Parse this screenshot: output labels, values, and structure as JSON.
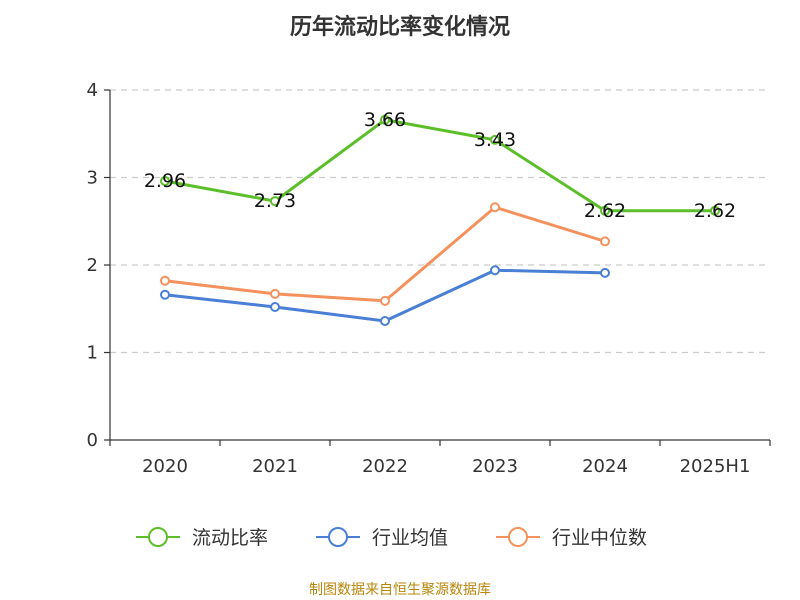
{
  "chart_data": {
    "type": "line",
    "title": "历年流动比率变化情况",
    "categories": [
      "2020",
      "2021",
      "2022",
      "2023",
      "2024",
      "2025H1"
    ],
    "ylim": [
      0,
      4
    ],
    "yticks": [
      0,
      1,
      2,
      3,
      4
    ],
    "grid": true,
    "legend_position": "bottom",
    "series": [
      {
        "name": "流动比率",
        "color": "#5cbf2a",
        "values": [
          2.96,
          2.73,
          3.66,
          3.43,
          2.62,
          2.62
        ],
        "labels": [
          "2.96",
          "2.73",
          "3.66",
          "3.43",
          "2.62",
          "2.62"
        ]
      },
      {
        "name": "行业均值",
        "color": "#4a7fd6",
        "values": [
          1.66,
          1.52,
          1.36,
          1.94,
          1.91,
          null
        ]
      },
      {
        "name": "行业中位数",
        "color": "#f5915c",
        "values": [
          1.82,
          1.67,
          1.59,
          2.66,
          2.27,
          null
        ]
      }
    ]
  },
  "source": "制图数据来自恒生聚源数据库"
}
